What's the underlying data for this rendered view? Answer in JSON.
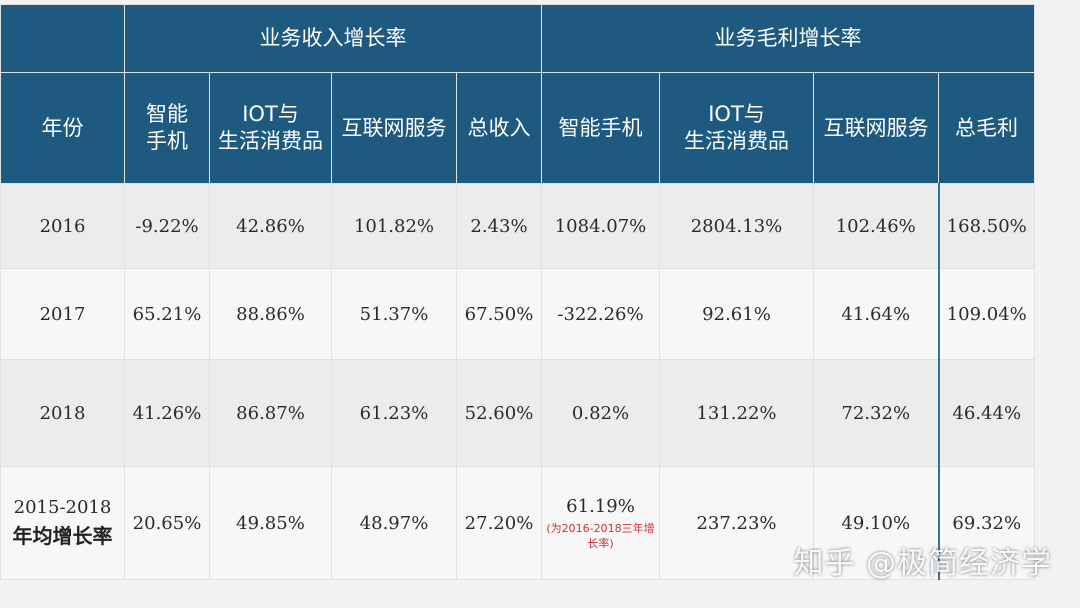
{
  "header": {
    "group_revenue": "业务收入增长率",
    "group_profit": "业务毛利增长率",
    "year_col": "年份",
    "columns": [
      "智能手机",
      "IOT与生活消费品",
      "互联网服务",
      "总收入",
      "智能手机",
      "IOT与生活消费品",
      "互联网服务",
      "总毛利"
    ],
    "col_lines": {
      "c1": [
        "智能",
        "手机"
      ],
      "c2": [
        "IOT与",
        "生活消费品"
      ],
      "c6": [
        "IOT与",
        "生活消费品"
      ]
    }
  },
  "rows": [
    {
      "year": "2016",
      "values": [
        "-9.22%",
        "42.86%",
        "101.82%",
        "2.43%",
        "1084.07%",
        "2804.13%",
        "102.46%",
        "168.50%"
      ]
    },
    {
      "year": "2017",
      "values": [
        "65.21%",
        "88.86%",
        "51.37%",
        "67.50%",
        "-322.26%",
        "92.61%",
        "41.64%",
        "109.04%"
      ]
    },
    {
      "year": "2018",
      "values": [
        "41.26%",
        "86.87%",
        "61.23%",
        "52.60%",
        "0.82%",
        "131.22%",
        "72.32%",
        "46.44%"
      ]
    },
    {
      "year": "2015-2018",
      "year_sub": "年均增长率",
      "values": [
        "20.65%",
        "49.85%",
        "48.97%",
        "27.20%",
        "61.19%",
        "237.23%",
        "49.10%",
        "69.32%"
      ],
      "note": "(为2016-2018三年增长率)"
    }
  ],
  "watermark": {
    "text": "知乎 @极简经济学",
    "logo": "◎"
  }
}
